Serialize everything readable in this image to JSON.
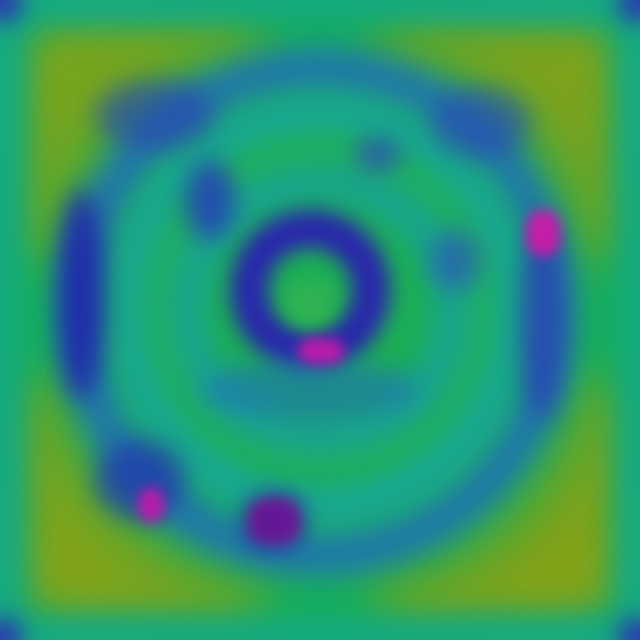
{
  "image": {
    "kind": "heatmap-texture",
    "palette": {
      "yellow_olive": "#8fa414",
      "green": "#1fb04a",
      "teal": "#14a790",
      "cyan": "#18a0b8",
      "blue": "#2232b8",
      "navy": "#2414a8",
      "magenta": "#d11aa0",
      "pink_red": "#e0186e"
    },
    "regions": [
      "olive-corner-panels",
      "outer-ring-blue",
      "inner-ring-teal",
      "center-blue-core",
      "magenta-hotspots",
      "corner-blue-dots"
    ]
  }
}
